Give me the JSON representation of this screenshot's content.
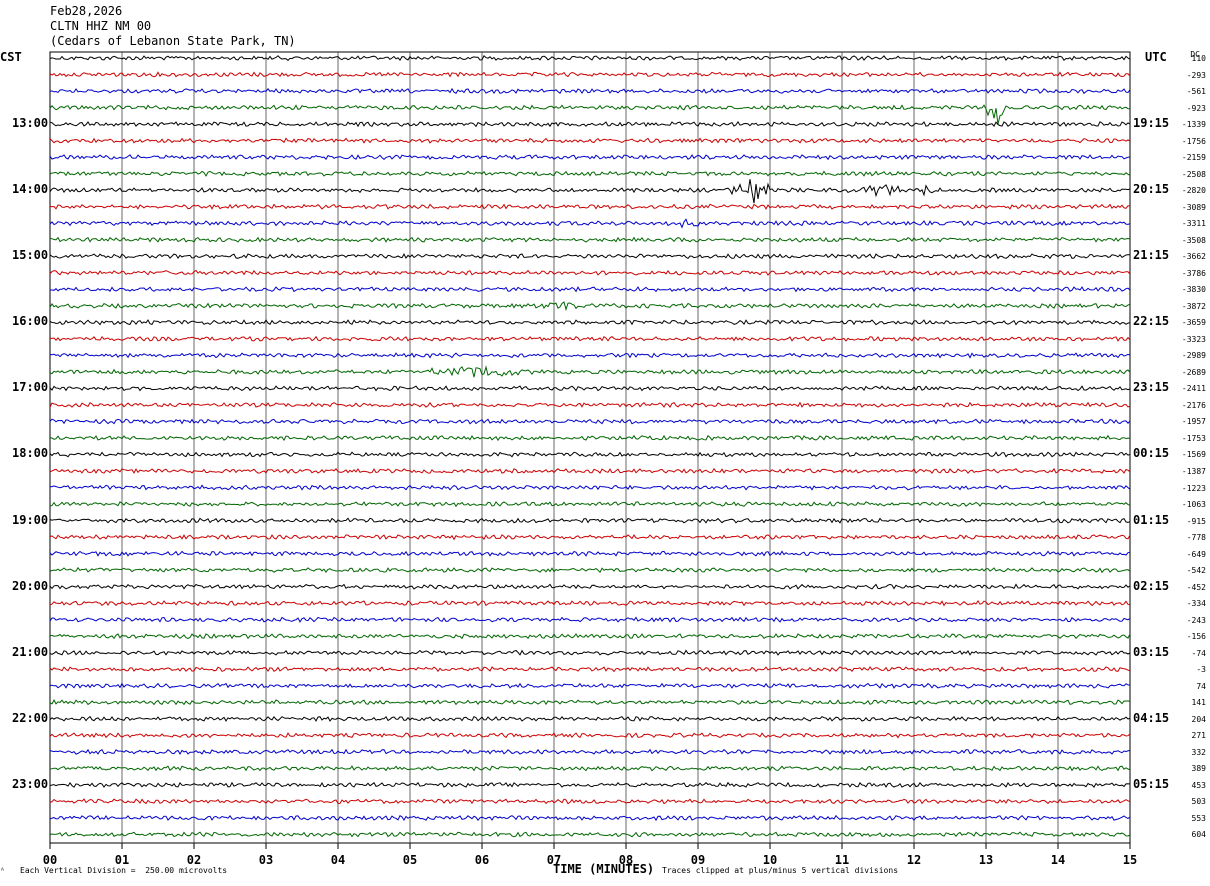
{
  "header": {
    "date": "Feb28,2026",
    "station": "CLTN HHZ NM 00",
    "location": "(Cedars of Lebanon State Park, TN)"
  },
  "left_tz": "CST",
  "right_tz": "UTC",
  "dc_header": "DC",
  "footer": {
    "corner": "ᴬ",
    "scale": "Each Vertical Division =  250.00 microvolts",
    "clip": "Traces clipped at plus/minus 5 vertical divisions"
  },
  "colors": {
    "trace_cycle": [
      "#000000",
      "#cc0000",
      "#0000cc",
      "#006600"
    ],
    "grid": "#000000"
  },
  "chart_data": {
    "type": "line",
    "xlabel": "TIME (MINUTES)",
    "x_ticks": [
      "00",
      "01",
      "02",
      "03",
      "04",
      "05",
      "06",
      "07",
      "08",
      "09",
      "10",
      "11",
      "12",
      "13",
      "14",
      "15"
    ],
    "xlim": [
      0,
      15
    ],
    "rows_per_hour": 4,
    "row_count": 48,
    "left_hour_labels": [
      "13:00",
      "14:00",
      "15:00",
      "16:00",
      "17:00",
      "18:00",
      "19:00",
      "20:00",
      "21:00",
      "22:00",
      "23:00"
    ],
    "right_hour_labels": [
      "19:15",
      "20:15",
      "21:15",
      "22:15",
      "23:15",
      "00:15",
      "01:15",
      "02:15",
      "03:15",
      "04:15",
      "05:15"
    ],
    "dc_values": [
      "110",
      "-293",
      "-561",
      "-923",
      "-1339",
      "-1756",
      "-2159",
      "-2508",
      "-2820",
      "-3089",
      "-3311",
      "-3508",
      "-3662",
      "-3786",
      "-3830",
      "-3872",
      "-3659",
      "-3323",
      "-2989",
      "-2689",
      "-2411",
      "-2176",
      "-1957",
      "-1753",
      "-1569",
      "-1387",
      "-1223",
      "-1063",
      "-915",
      "-778",
      "-649",
      "-542",
      "-452",
      "-334",
      "-243",
      "-156",
      "-74",
      "-3",
      "74",
      "141",
      "204",
      "271",
      "332",
      "389",
      "453",
      "503",
      "553",
      "604"
    ],
    "events": [
      {
        "row": 3,
        "minute": 13.15,
        "amplitude": 2.2,
        "duration": 0.2
      },
      {
        "row": 8,
        "minute": 9.8,
        "amplitude": 2.0,
        "duration": 0.4
      },
      {
        "row": 8,
        "minute": 11.45,
        "amplitude": 0.9,
        "duration": 0.25
      },
      {
        "row": 8,
        "minute": 11.65,
        "amplitude": 0.8,
        "duration": 0.2
      },
      {
        "row": 8,
        "minute": 12.15,
        "amplitude": 0.7,
        "duration": 0.2
      },
      {
        "row": 10,
        "minute": 8.8,
        "amplitude": 0.4,
        "duration": 0.3
      },
      {
        "row": 15,
        "minute": 7.1,
        "amplitude": 0.45,
        "duration": 0.6
      },
      {
        "row": 19,
        "minute": 6.0,
        "amplitude": 0.7,
        "duration": 1.0
      }
    ]
  }
}
